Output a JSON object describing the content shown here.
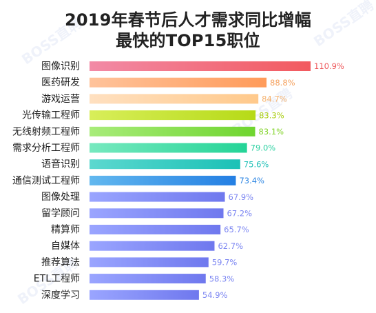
{
  "title": {
    "line1": "2019年春节后人才需求同比增幅",
    "line2": "最快的TOP15职位"
  },
  "watermark": {
    "text": "BOSS直聘"
  },
  "chart_data": {
    "type": "bar",
    "orientation": "horizontal",
    "categories": [
      "图像识别",
      "医药研发",
      "游戏运营",
      "光传输工程师",
      "无线射频工程师",
      "需求分析工程师",
      "语音识别",
      "通信测试工程师",
      "图像处理",
      "留学顾问",
      "精算师",
      "自媒体",
      "推荐算法",
      "ETL工程师",
      "深度学习"
    ],
    "values": [
      110.9,
      88.8,
      84.7,
      83.3,
      83.1,
      79.0,
      75.6,
      73.4,
      67.9,
      67.2,
      65.7,
      62.7,
      59.7,
      58.3,
      54.9
    ],
    "data_labels": [
      "110.9%",
      "88.8%",
      "84.7%",
      "83.3%",
      "83.1%",
      "79.0%",
      "75.6%",
      "73.4%",
      "67.9%",
      "67.2%",
      "65.7%",
      "62.7%",
      "59.7%",
      "58.3%",
      "54.9%"
    ],
    "colors": {
      "bars": [
        [
          "#f28aa6",
          "#f25a5f"
        ],
        [
          "#ffc39b",
          "#ff9b5a"
        ],
        [
          "#ffe0c0",
          "#ffc98b"
        ],
        [
          "#d8ee5a",
          "#b6da17"
        ],
        [
          "#a8ec7a",
          "#6fd52f"
        ],
        [
          "#77e9bf",
          "#24d497"
        ],
        [
          "#5cd8cf",
          "#1bc1b6"
        ],
        [
          "#62b8ef",
          "#247fe3"
        ],
        [
          "#9aa5ff",
          "#6f78ee"
        ],
        [
          "#9aa5ff",
          "#6f78ee"
        ],
        [
          "#9aa5ff",
          "#6f78ee"
        ],
        [
          "#9aa5ff",
          "#6f78ee"
        ],
        [
          "#9aa5ff",
          "#6f78ee"
        ],
        [
          "#9aa5ff",
          "#6f78ee"
        ],
        [
          "#9aa5ff",
          "#6f78ee"
        ]
      ],
      "labels": [
        "#ee5a5d",
        "#f5a15e",
        "#f5b16c",
        "#a9cd10",
        "#84d42c",
        "#28d0a0",
        "#1cbfb6",
        "#2d86e3",
        "#7c86f2",
        "#7c86f2",
        "#7c86f2",
        "#7c86f2",
        "#7c86f2",
        "#7c86f2",
        "#7c86f2"
      ]
    },
    "xlim": [
      0,
      110.9
    ],
    "grid": false,
    "legend": "none"
  }
}
